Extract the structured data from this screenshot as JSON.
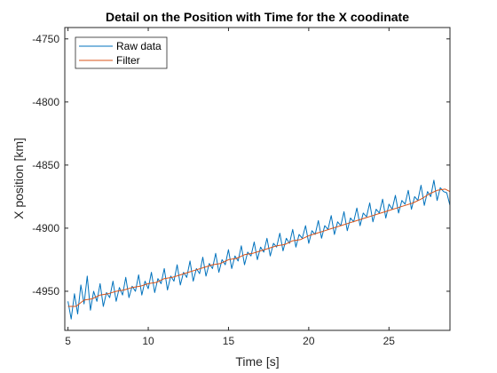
{
  "chart_data": {
    "type": "line",
    "title": "Detail on the Position with Time for the X coodinate",
    "xlabel": "Time [s]",
    "ylabel": "X position [km]",
    "xlim": [
      4.8,
      28.8
    ],
    "ylim": [
      -4981,
      -4741
    ],
    "x_ticks": [
      5,
      10,
      15,
      20,
      25
    ],
    "y_ticks": [
      -4950,
      -4900,
      -4850,
      -4800,
      -4750
    ],
    "x_tick_labels": [
      "5",
      "10",
      "15",
      "20",
      "25"
    ],
    "y_tick_labels": [
      "-4950",
      "-4900",
      "-4850",
      "-4800",
      "-4750"
    ],
    "grid": false,
    "legend_position": "top-left",
    "series": [
      {
        "name": "Raw data",
        "color": "#0072BD",
        "x": [
          5.0,
          5.2,
          5.4,
          5.6,
          5.8,
          6.0,
          6.2,
          6.4,
          6.6,
          6.8,
          7.0,
          7.2,
          7.4,
          7.6,
          7.8,
          8.0,
          8.2,
          8.4,
          8.6,
          8.8,
          9.0,
          9.2,
          9.4,
          9.6,
          9.8,
          10.0,
          10.2,
          10.4,
          10.6,
          10.8,
          11.0,
          11.2,
          11.4,
          11.6,
          11.8,
          12.0,
          12.2,
          12.4,
          12.6,
          12.8,
          13.0,
          13.2,
          13.4,
          13.6,
          13.8,
          14.0,
          14.2,
          14.4,
          14.6,
          14.8,
          15.0,
          15.2,
          15.4,
          15.6,
          15.8,
          16.0,
          16.2,
          16.4,
          16.6,
          16.8,
          17.0,
          17.2,
          17.4,
          17.6,
          17.8,
          18.0,
          18.2,
          18.4,
          18.6,
          18.8,
          19.0,
          19.2,
          19.4,
          19.6,
          19.8,
          20.0,
          20.2,
          20.4,
          20.6,
          20.8,
          21.0,
          21.2,
          21.4,
          21.6,
          21.8,
          22.0,
          22.2,
          22.4,
          22.6,
          22.8,
          23.0,
          23.2,
          23.4,
          23.6,
          23.8,
          24.0,
          24.2,
          24.4,
          24.6,
          24.8,
          25.0,
          25.2,
          25.4,
          25.6,
          25.8,
          26.0,
          26.2,
          26.4,
          26.6,
          26.8,
          27.0,
          27.2,
          27.4,
          27.6,
          27.8,
          28.0,
          28.2,
          28.4,
          28.6,
          28.8
        ],
        "y": [
          -4958,
          -4972,
          -4952,
          -4968,
          -4945,
          -4960,
          -4938,
          -4965,
          -4950,
          -4958,
          -4944,
          -4962,
          -4951,
          -4955,
          -4942,
          -4958,
          -4947,
          -4953,
          -4939,
          -4955,
          -4946,
          -4950,
          -4937,
          -4953,
          -4942,
          -4948,
          -4935,
          -4951,
          -4940,
          -4944,
          -4932,
          -4949,
          -4938,
          -4942,
          -4929,
          -4945,
          -4935,
          -4939,
          -4926,
          -4942,
          -4932,
          -4936,
          -4923,
          -4938,
          -4928,
          -4932,
          -4920,
          -4935,
          -4925,
          -4929,
          -4917,
          -4932,
          -4922,
          -4926,
          -4914,
          -4929,
          -4919,
          -4922,
          -4911,
          -4925,
          -4915,
          -4919,
          -4908,
          -4922,
          -4912,
          -4915,
          -4904,
          -4918,
          -4908,
          -4912,
          -4901,
          -4915,
          -4905,
          -4908,
          -4898,
          -4912,
          -4902,
          -4905,
          -4894,
          -4908,
          -4898,
          -4901,
          -4890,
          -4905,
          -4895,
          -4898,
          -4887,
          -4902,
          -4892,
          -4895,
          -4884,
          -4898,
          -4888,
          -4891,
          -4880,
          -4895,
          -4885,
          -4888,
          -4877,
          -4892,
          -4881,
          -4885,
          -4874,
          -4888,
          -4878,
          -4881,
          -4870,
          -4885,
          -4875,
          -4878,
          -4866,
          -4882,
          -4871,
          -4875,
          -4862,
          -4878,
          -4868,
          -4871,
          -4872,
          -4882
        ]
      },
      {
        "name": "Filter",
        "color": "#D95319",
        "x": [
          5.0,
          5.5,
          6.0,
          6.5,
          7.0,
          7.5,
          8.0,
          8.5,
          9.0,
          9.5,
          10.0,
          10.5,
          11.0,
          11.5,
          12.0,
          12.5,
          13.0,
          13.5,
          14.0,
          14.5,
          15.0,
          15.5,
          16.0,
          16.5,
          17.0,
          17.5,
          18.0,
          18.5,
          19.0,
          19.5,
          20.0,
          20.5,
          21.0,
          21.5,
          22.0,
          22.5,
          23.0,
          23.5,
          24.0,
          24.5,
          25.0,
          25.5,
          26.0,
          26.5,
          27.0,
          27.5,
          28.0,
          28.5,
          28.8
        ],
        "y": [
          -4962,
          -4962,
          -4957,
          -4956,
          -4953,
          -4952,
          -4950,
          -4949,
          -4947,
          -4946,
          -4944,
          -4943,
          -4940,
          -4939,
          -4937,
          -4935,
          -4933,
          -4931,
          -4929,
          -4928,
          -4925,
          -4924,
          -4921,
          -4920,
          -4918,
          -4916,
          -4914,
          -4913,
          -4910,
          -4909,
          -4906,
          -4904,
          -4902,
          -4900,
          -4898,
          -4896,
          -4894,
          -4892,
          -4890,
          -4888,
          -4886,
          -4884,
          -4882,
          -4880,
          -4877,
          -4873,
          -4870,
          -4869,
          -4871
        ]
      }
    ]
  }
}
